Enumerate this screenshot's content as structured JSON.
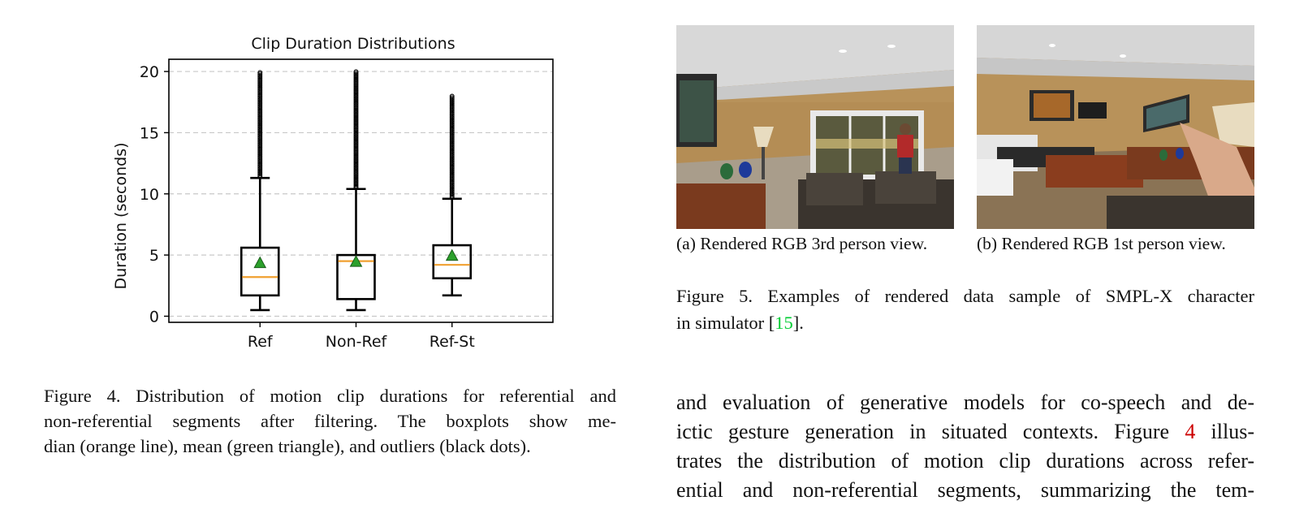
{
  "chart_data": {
    "type": "box",
    "title": "Clip Duration Distributions",
    "ylabel": "Duration (seconds)",
    "xlabel": "",
    "categories": [
      "Ref",
      "Non-Ref",
      "Ref-St"
    ],
    "ylim": [
      -0.5,
      21
    ],
    "yticks": [
      0,
      5,
      10,
      15,
      20
    ],
    "grid": "horizontal dashed",
    "boxes": [
      {
        "name": "Ref",
        "whisker_low": 0.5,
        "q1": 1.7,
        "median": 3.2,
        "q3": 5.6,
        "whisker_high": 11.3,
        "mean": 4.3,
        "outlier_min": 11.4,
        "outlier_max": 20.0
      },
      {
        "name": "Non-Ref",
        "whisker_low": 0.5,
        "q1": 1.4,
        "median": 4.5,
        "q3": 5.0,
        "whisker_high": 10.4,
        "mean": 4.4,
        "outlier_min": 10.5,
        "outlier_max": 20.0
      },
      {
        "name": "Ref-St",
        "whisker_low": 1.7,
        "q1": 3.1,
        "median": 4.2,
        "q3": 5.8,
        "whisker_high": 9.6,
        "mean": 4.9,
        "outlier_min": 9.7,
        "outlier_max": 18.0
      }
    ],
    "colors": {
      "median": "#f0a030",
      "mean_fill": "#2ca02c",
      "mean_edge": "#1a5c1a",
      "box": "#000000",
      "grid": "#c8c8c8"
    }
  },
  "figure4": {
    "caption_lines": [
      "Figure 4. Distribution of motion clip durations for referential and",
      "non-referential segments after filtering.  The boxplots show me-",
      "dian (orange line), mean (green triangle), and outliers (black dots)."
    ]
  },
  "figure5": {
    "subcaption_a": "(a) Rendered RGB 3rd person view.",
    "subcaption_b": "(b) Rendered RGB 1st person view.",
    "caption_prefix": "Figure 5. Examples of rendered data sample of SMPL-X character",
    "caption_line2_pre": "in simulator [",
    "caption_ref": "15",
    "caption_line2_post": "].",
    "image_a": "rendered-room-3rd-person",
    "image_b": "rendered-room-1st-person"
  },
  "body": {
    "line1": "and evaluation of generative models for co-speech and de-",
    "line2_pre": "ictic gesture generation in situated contexts. Figure ",
    "line2_ref": "4",
    "line2_post": " illus-",
    "line3": "trates the distribution of motion clip durations across refer-",
    "line4": "ential and non-referential segments, summarizing the tem-"
  }
}
